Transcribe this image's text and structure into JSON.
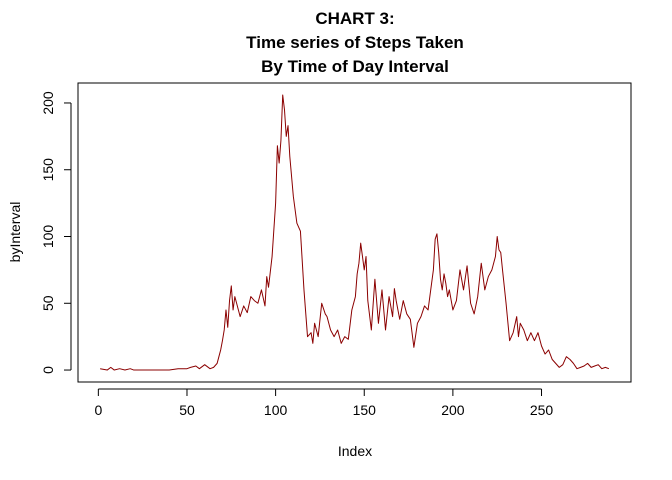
{
  "chart_data": {
    "type": "line",
    "title_lines": [
      "CHART 3:",
      "Time series of Steps Taken",
      "By Time of Day Interval"
    ],
    "xlabel": "Index",
    "ylabel": "byInterval",
    "xlim": [
      1,
      288
    ],
    "ylim": [
      0,
      206
    ],
    "x_ticks": [
      0,
      50,
      100,
      150,
      200,
      250
    ],
    "y_ticks": [
      0,
      50,
      100,
      150,
      200
    ],
    "x_tick_labels": [
      "0",
      "50",
      "100",
      "150",
      "200",
      "250"
    ],
    "y_tick_labels": [
      "0",
      "50",
      "100",
      "150",
      "200"
    ],
    "line_color": "#8b0000",
    "series": [
      {
        "x": [
          1,
          5,
          7,
          9,
          12,
          15,
          18,
          20,
          25,
          30,
          35,
          40,
          45,
          50,
          52,
          55,
          57,
          60,
          63,
          65,
          67,
          68,
          69,
          70,
          71,
          72,
          73,
          74,
          75,
          76,
          77,
          78,
          79,
          80,
          82,
          84,
          86,
          88,
          90,
          92,
          94,
          95,
          96,
          98,
          100,
          101,
          102,
          103,
          104,
          105,
          106,
          107,
          108,
          110,
          112,
          114,
          116,
          118,
          120,
          121,
          122,
          123,
          124,
          126,
          128,
          129,
          131,
          133,
          135,
          137,
          139,
          141,
          143,
          145,
          146,
          147,
          148,
          150,
          151,
          152,
          154,
          156,
          158,
          160,
          162,
          164,
          166,
          167,
          168,
          170,
          172,
          174,
          176,
          178,
          180,
          182,
          184,
          186,
          188,
          189,
          190,
          191,
          192,
          193,
          194,
          195,
          196,
          197,
          198,
          200,
          202,
          204,
          206,
          208,
          210,
          212,
          214,
          216,
          218,
          220,
          222,
          224,
          225,
          226,
          227,
          228,
          230,
          232,
          234,
          236,
          237,
          238,
          240,
          242,
          244,
          246,
          248,
          250,
          252,
          254,
          256,
          258,
          260,
          262,
          264,
          266,
          268,
          270,
          272,
          274,
          276,
          278,
          280,
          282,
          284,
          286,
          288
        ],
        "values": [
          1,
          0,
          2,
          0,
          1,
          0,
          1,
          0,
          0,
          0,
          0,
          0,
          1,
          1,
          2,
          3,
          1,
          4,
          1,
          2,
          5,
          10,
          15,
          22,
          30,
          45,
          32,
          52,
          63,
          45,
          55,
          50,
          45,
          40,
          48,
          43,
          55,
          52,
          50,
          60,
          48,
          70,
          62,
          85,
          125,
          168,
          155,
          172,
          206,
          195,
          175,
          183,
          160,
          130,
          110,
          104,
          60,
          25,
          28,
          20,
          35,
          30,
          25,
          50,
          42,
          40,
          30,
          25,
          30,
          20,
          25,
          23,
          45,
          55,
          72,
          80,
          95,
          75,
          85,
          52,
          30,
          68,
          35,
          60,
          30,
          55,
          40,
          61,
          52,
          38,
          52,
          42,
          38,
          17,
          35,
          40,
          48,
          45,
          65,
          75,
          98,
          102,
          88,
          68,
          60,
          72,
          65,
          55,
          60,
          45,
          52,
          75,
          60,
          78,
          50,
          42,
          55,
          80,
          60,
          70,
          75,
          85,
          100,
          90,
          88,
          75,
          50,
          22,
          28,
          40,
          25,
          35,
          30,
          22,
          28,
          22,
          28,
          18,
          12,
          15,
          8,
          5,
          2,
          4,
          10,
          8,
          5,
          1,
          2,
          3,
          5,
          2,
          3,
          4,
          1,
          2,
          1
        ]
      }
    ]
  }
}
